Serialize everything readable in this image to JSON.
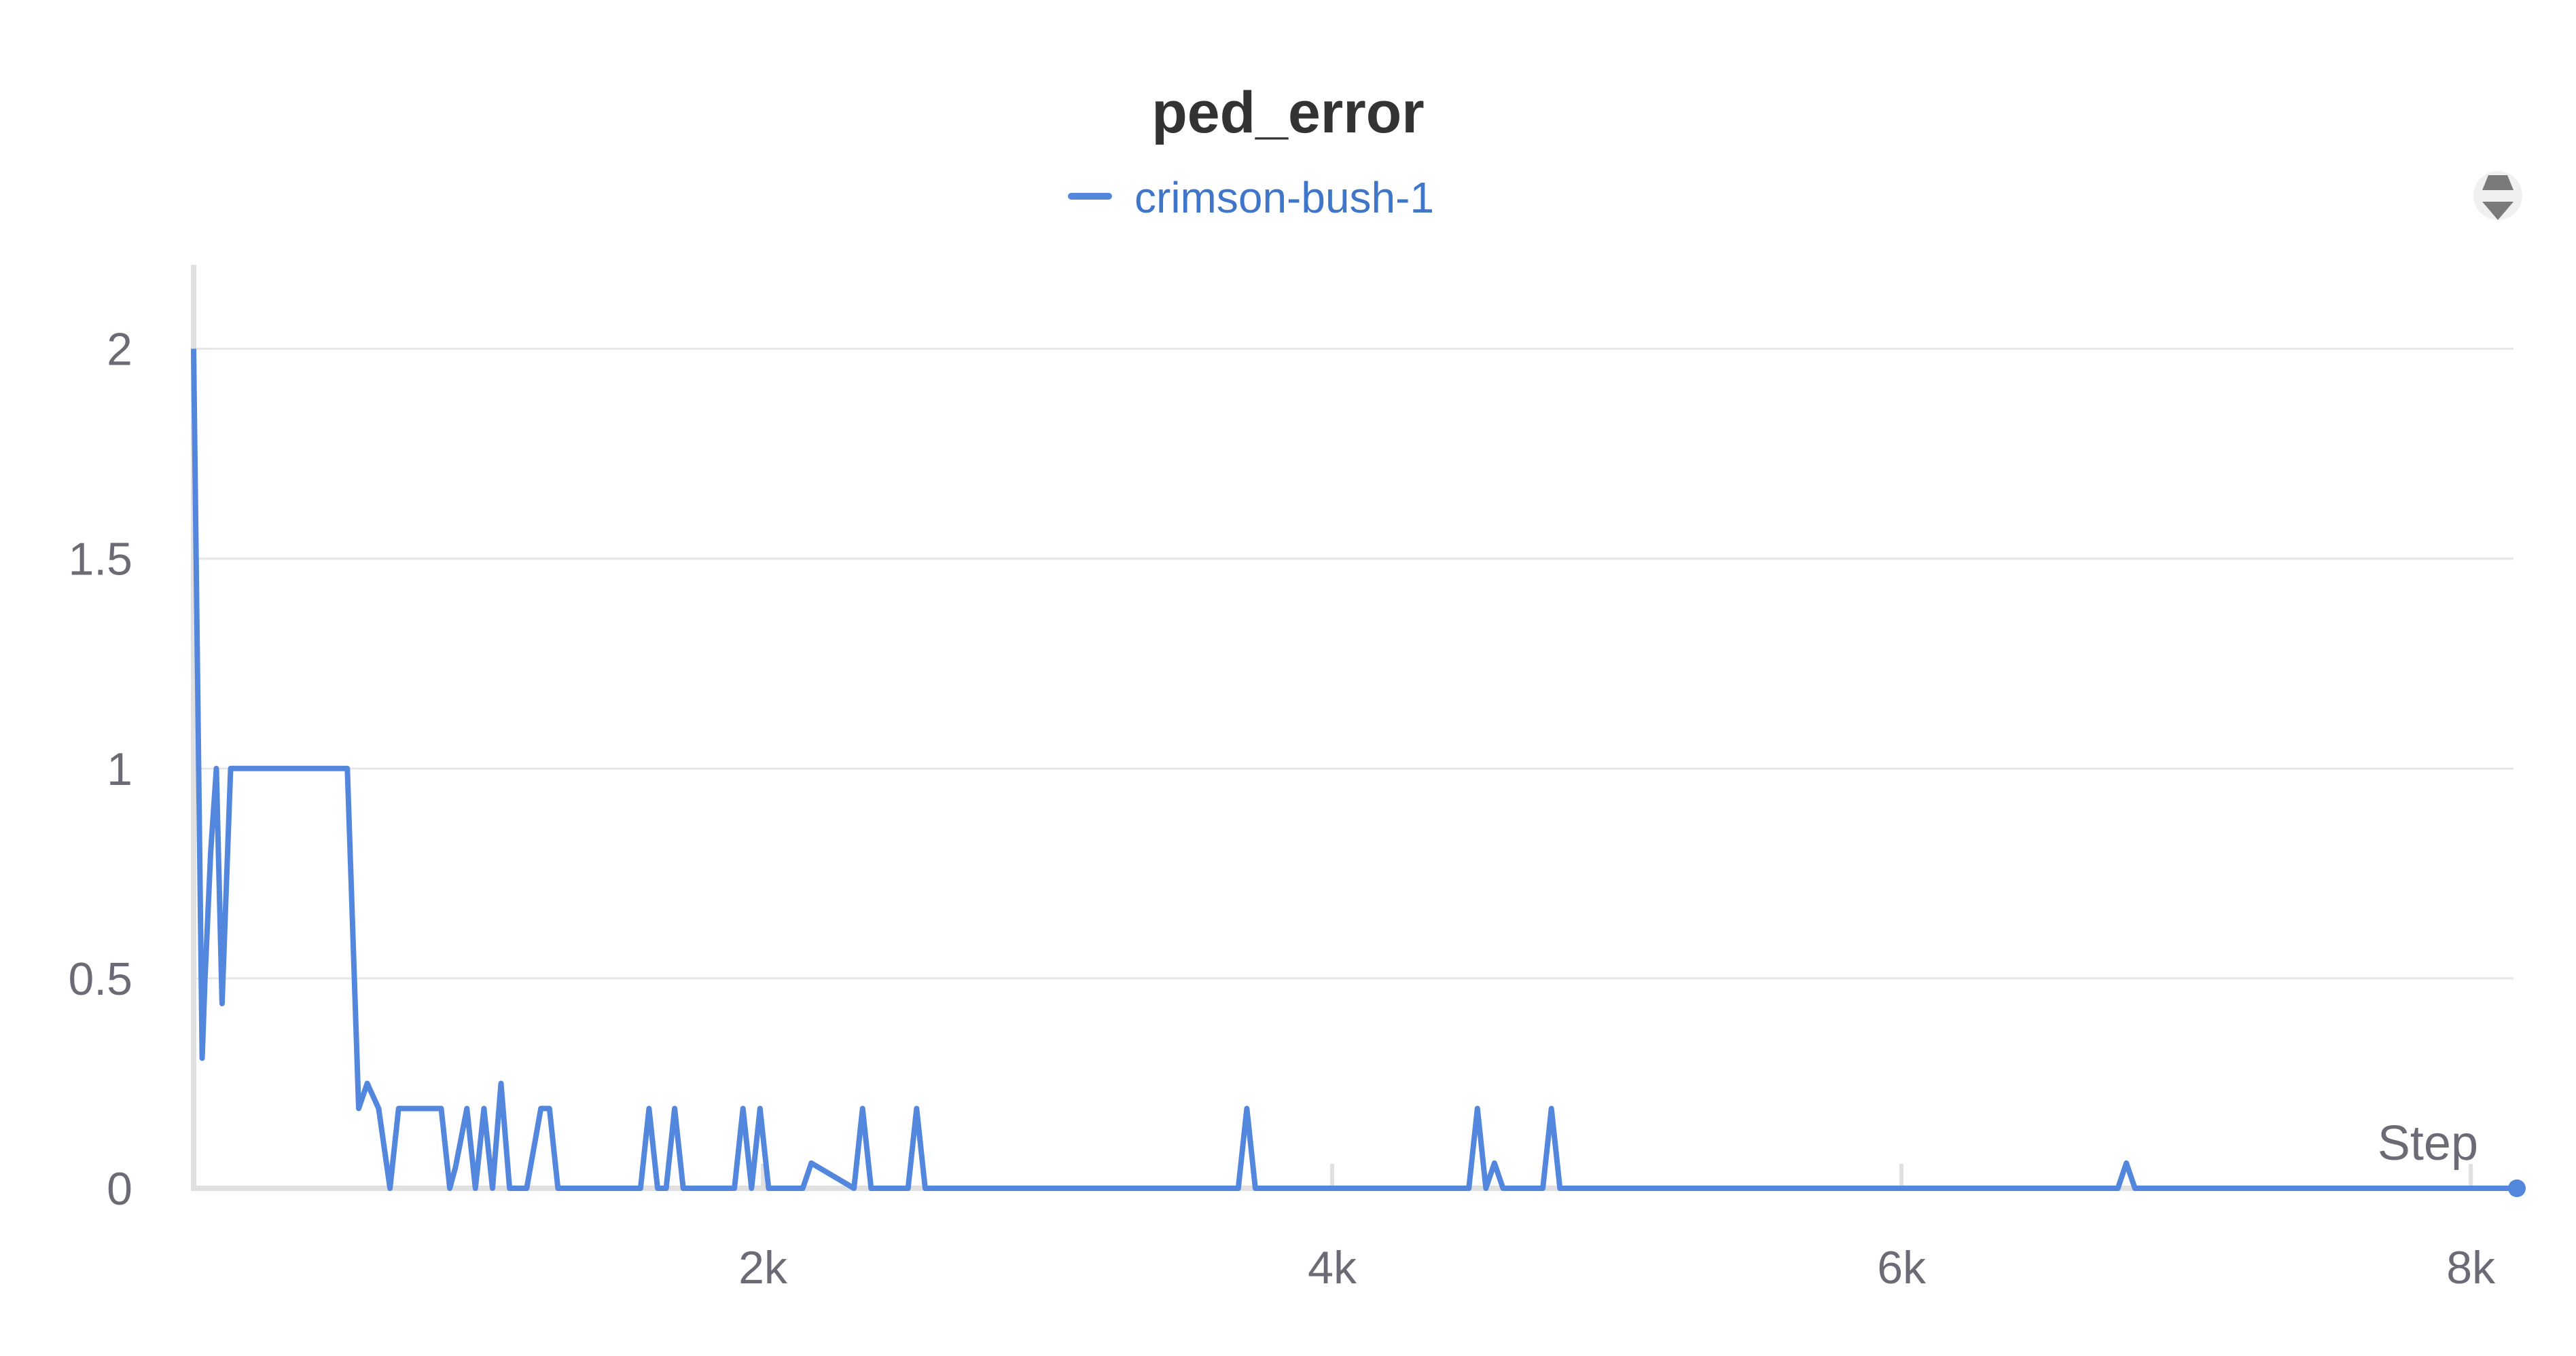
{
  "chart_data": {
    "type": "line",
    "title": "ped_error",
    "xlabel": "Step",
    "ylabel": "",
    "xlim": [
      0,
      8150
    ],
    "ylim": [
      0,
      2.2
    ],
    "x_ticks": [
      {
        "value": 2000,
        "label": "2k"
      },
      {
        "value": 4000,
        "label": "4k"
      },
      {
        "value": 6000,
        "label": "6k"
      },
      {
        "value": 8000,
        "label": "8k"
      }
    ],
    "y_ticks": [
      {
        "value": 0,
        "label": "0"
      },
      {
        "value": 0.5,
        "label": "0.5"
      },
      {
        "value": 1,
        "label": "1"
      },
      {
        "value": 1.5,
        "label": "1.5"
      },
      {
        "value": 2,
        "label": "2"
      }
    ],
    "grid": true,
    "legend_position": "top-center",
    "series": [
      {
        "name": "crimson-bush-1",
        "color": "#5387dd",
        "x": [
          0,
          30,
          40,
          60,
          80,
          100,
          130,
          160,
          540,
          580,
          610,
          650,
          690,
          720,
          870,
          900,
          920,
          960,
          990,
          1020,
          1050,
          1080,
          1110,
          1140,
          1170,
          1220,
          1250,
          1280,
          1570,
          1600,
          1630,
          1660,
          1690,
          1720,
          1880,
          1900,
          1930,
          1960,
          1990,
          2020,
          2120,
          2140,
          2170,
          2320,
          2350,
          2380,
          2510,
          2540,
          2570,
          3670,
          3700,
          3730,
          4480,
          4510,
          4540,
          4570,
          4600,
          4630,
          4740,
          4770,
          4800,
          6760,
          6790,
          6820,
          8150
        ],
        "y": [
          2.0,
          0.31,
          0.5,
          0.8,
          1.0,
          0.44,
          1.0,
          1.0,
          1.0,
          0.19,
          0.25,
          0.19,
          0.0,
          0.19,
          0.19,
          0.0,
          0.05,
          0.19,
          0.0,
          0.19,
          0.0,
          0.25,
          0.0,
          0.0,
          0.0,
          0.19,
          0.19,
          0.0,
          0.0,
          0.19,
          0.0,
          0.0,
          0.19,
          0.0,
          0.0,
          0.0,
          0.19,
          0.0,
          0.19,
          0.0,
          0.0,
          0.0,
          0.06,
          0.0,
          0.19,
          0.0,
          0.0,
          0.19,
          0.0,
          0.0,
          0.19,
          0.0,
          0.0,
          0.19,
          0.0,
          0.06,
          0.0,
          0.0,
          0.0,
          0.19,
          0.0,
          0.0,
          0.06,
          0.0,
          0.0
        ]
      }
    ]
  },
  "controls": {
    "legend_toggle_icon": "sort-arrows-icon"
  }
}
